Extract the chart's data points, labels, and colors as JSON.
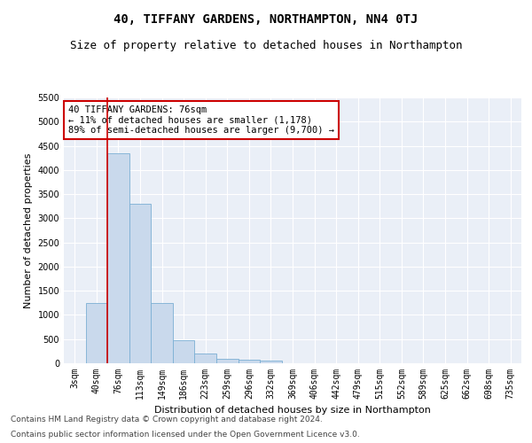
{
  "title": "40, TIFFANY GARDENS, NORTHAMPTON, NN4 0TJ",
  "subtitle": "Size of property relative to detached houses in Northampton",
  "xlabel": "Distribution of detached houses by size in Northampton",
  "ylabel": "Number of detached properties",
  "categories": [
    "3sqm",
    "40sqm",
    "76sqm",
    "113sqm",
    "149sqm",
    "186sqm",
    "223sqm",
    "259sqm",
    "296sqm",
    "332sqm",
    "369sqm",
    "406sqm",
    "442sqm",
    "479sqm",
    "515sqm",
    "552sqm",
    "589sqm",
    "625sqm",
    "662sqm",
    "698sqm",
    "735sqm"
  ],
  "bar_values": [
    0,
    1250,
    4350,
    3300,
    1250,
    480,
    200,
    100,
    80,
    50,
    0,
    0,
    0,
    0,
    0,
    0,
    0,
    0,
    0,
    0,
    0
  ],
  "bar_color": "#c9d9ec",
  "bar_edge_color": "#7bafd4",
  "annotation_text": "40 TIFFANY GARDENS: 76sqm\n← 11% of detached houses are smaller (1,178)\n89% of semi-detached houses are larger (9,700) →",
  "annotation_box_color": "#ffffff",
  "annotation_border_color": "#cc0000",
  "ylim": [
    0,
    5500
  ],
  "yticks": [
    0,
    500,
    1000,
    1500,
    2000,
    2500,
    3000,
    3500,
    4000,
    4500,
    5000,
    5500
  ],
  "red_line_color": "#cc0000",
  "footer1": "Contains HM Land Registry data © Crown copyright and database right 2024.",
  "footer2": "Contains public sector information licensed under the Open Government Licence v3.0.",
  "title_fontsize": 10,
  "subtitle_fontsize": 9,
  "axis_label_fontsize": 8,
  "tick_fontsize": 7,
  "annotation_fontsize": 7.5,
  "footer_fontsize": 6.5,
  "ylabel_fontsize": 8
}
